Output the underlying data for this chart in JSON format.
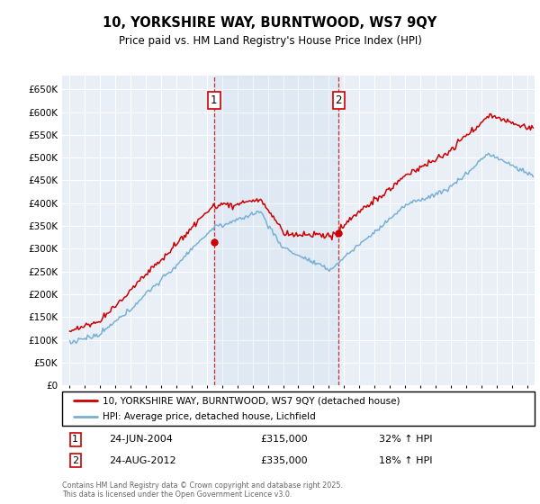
{
  "title": "10, YORKSHIRE WAY, BURNTWOOD, WS7 9QY",
  "subtitle": "Price paid vs. HM Land Registry's House Price Index (HPI)",
  "hpi_color": "#7ab0d4",
  "price_color": "#cc0000",
  "annotation_color": "#cc0000",
  "background_plot": "#e8eff7",
  "grid_color": "#ffffff",
  "legend_line1": "10, YORKSHIRE WAY, BURNTWOOD, WS7 9QY (detached house)",
  "legend_line2": "HPI: Average price, detached house, Lichfield",
  "footer": "Contains HM Land Registry data © Crown copyright and database right 2025.\nThis data is licensed under the Open Government Licence v3.0.",
  "sale1_year": 2004.47,
  "sale1_price": 315000,
  "sale2_year": 2012.64,
  "sale2_price": 335000,
  "xmin": 1994.5,
  "xmax": 2025.5,
  "ylim_max": 680000,
  "yticks": [
    0,
    50000,
    100000,
    150000,
    200000,
    250000,
    300000,
    350000,
    400000,
    450000,
    500000,
    550000,
    600000,
    650000
  ],
  "ann1_date": "24-JUN-2004",
  "ann1_price": "£315,000",
  "ann1_pct": "32% ↑ HPI",
  "ann2_date": "24-AUG-2012",
  "ann2_price": "£335,000",
  "ann2_pct": "18% ↑ HPI"
}
